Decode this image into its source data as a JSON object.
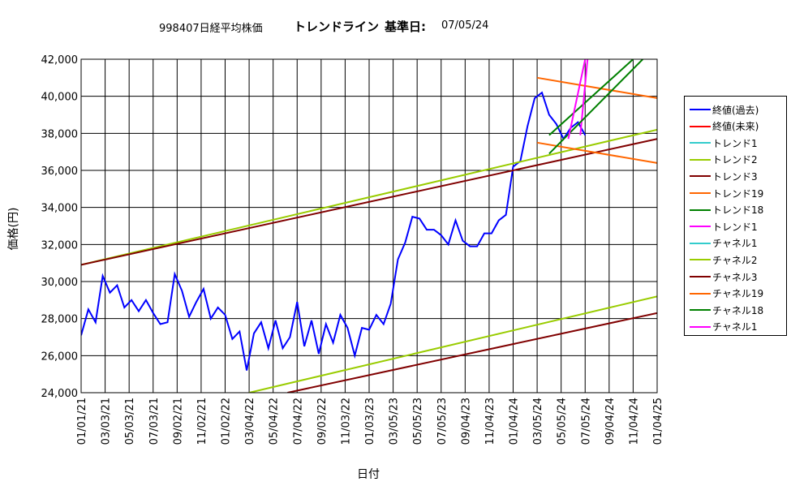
{
  "header": {
    "code_title": "998407日経平均株価",
    "trend_title": "トレンドライン",
    "base_label": "基準日:",
    "base_date": "07/05/24"
  },
  "axes": {
    "ylabel": "価格(円)",
    "xlabel": "日付"
  },
  "chart_data": {
    "type": "line",
    "ylim": [
      24000,
      42000
    ],
    "y_ticks": [
      "24,000",
      "26,000",
      "28,000",
      "30,000",
      "32,000",
      "34,000",
      "36,000",
      "38,000",
      "40,000",
      "42,000"
    ],
    "x_ticks": [
      "01/01/21",
      "03/03/21",
      "05/03/21",
      "07/03/21",
      "09/02/21",
      "11/02/21",
      "01/02/22",
      "03/04/22",
      "05/04/22",
      "07/04/22",
      "09/03/22",
      "11/03/22",
      "01/03/23",
      "03/05/23",
      "05/05/23",
      "07/05/23",
      "09/04/23",
      "11/04/23",
      "01/04/24",
      "03/05/24",
      "05/05/24",
      "07/05/24",
      "09/04/24",
      "11/04/24",
      "01/04/25"
    ],
    "xlim_index": [
      0,
      24
    ],
    "grid": true,
    "legend_position": "right",
    "series": [
      {
        "name": "終値(過去)",
        "color": "#0000ff",
        "x": [
          0,
          0.3,
          0.6,
          0.9,
          1.2,
          1.5,
          1.8,
          2.1,
          2.4,
          2.7,
          3.0,
          3.3,
          3.6,
          3.9,
          4.2,
          4.5,
          4.8,
          5.1,
          5.4,
          5.7,
          6.0,
          6.3,
          6.6,
          6.9,
          7.2,
          7.5,
          7.8,
          8.1,
          8.4,
          8.7,
          9.0,
          9.3,
          9.6,
          9.9,
          10.2,
          10.5,
          10.8,
          11.1,
          11.4,
          11.7,
          12.0,
          12.3,
          12.6,
          12.9,
          13.2,
          13.5,
          13.8,
          14.1,
          14.4,
          14.7,
          15.0,
          15.3,
          15.6,
          15.9,
          16.2,
          16.5,
          16.8,
          17.1,
          17.4,
          17.7,
          18.0,
          18.3,
          18.6,
          18.9,
          19.2,
          19.5,
          19.8,
          20.1,
          20.4,
          20.7,
          21.0
        ],
        "y": [
          27100,
          28500,
          27800,
          30300,
          29400,
          29800,
          28600,
          29000,
          28400,
          29000,
          28300,
          27700,
          27800,
          30400,
          29500,
          28100,
          28900,
          29600,
          28000,
          28600,
          28200,
          26900,
          27300,
          25200,
          27200,
          27800,
          26400,
          27900,
          26400,
          27000,
          28900,
          26500,
          27900,
          26100,
          27700,
          26700,
          28200,
          27500,
          26000,
          27500,
          27400,
          28200,
          27700,
          28800,
          31200,
          32100,
          33500,
          33400,
          32800,
          32800,
          32500,
          32000,
          33300,
          32200,
          31900,
          31900,
          32600,
          32600,
          33300,
          33600,
          36200,
          36500,
          38400,
          39900,
          40200,
          39000,
          38500,
          37700,
          38300,
          38600,
          37900
        ]
      },
      {
        "name": "終値(未来)",
        "color": "#ff0000",
        "x": [],
        "y": []
      },
      {
        "name": "トレンド1",
        "color": "#33cccc",
        "x": [],
        "y": []
      },
      {
        "name": "トレンド2",
        "color": "#99cc00",
        "x": [
          0,
          24
        ],
        "y": [
          30900,
          38200
        ]
      },
      {
        "name": "トレンド3",
        "color": "#800000",
        "x": [
          0,
          24
        ],
        "y": [
          30900,
          37700
        ]
      },
      {
        "name": "トレンド19",
        "color": "#ff6600",
        "x": [
          19,
          24
        ],
        "y": [
          41000,
          39900
        ]
      },
      {
        "name": "トレンド18",
        "color": "#008000",
        "x": [
          19.5,
          23
        ],
        "y": [
          37900,
          42000
        ]
      },
      {
        "name": "トレンド1",
        "color": "#ff00ff",
        "x": [
          20.8,
          21.1
        ],
        "y": [
          37900,
          42000
        ]
      },
      {
        "name": "チャネル1",
        "color": "#33cccc",
        "x": [],
        "y": []
      },
      {
        "name": "チャネル2",
        "color": "#99cc00",
        "x": [
          7,
          24
        ],
        "y": [
          24000,
          29200
        ]
      },
      {
        "name": "チャネル3",
        "color": "#800000",
        "x": [
          8.6,
          24
        ],
        "y": [
          24000,
          28300
        ]
      },
      {
        "name": "チャネル19",
        "color": "#ff6600",
        "x": [
          19,
          24
        ],
        "y": [
          37500,
          36400
        ]
      },
      {
        "name": "チャネル18",
        "color": "#008000",
        "x": [
          19.5,
          23.4
        ],
        "y": [
          36900,
          42000
        ]
      },
      {
        "name": "チャネル1",
        "color": "#ff00ff",
        "x": [
          20.3,
          21.0
        ],
        "y": [
          37700,
          42000
        ]
      }
    ]
  }
}
